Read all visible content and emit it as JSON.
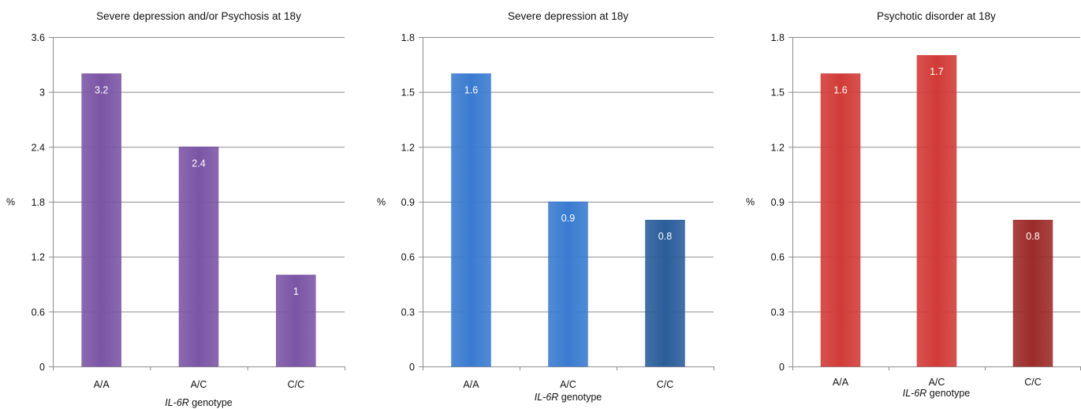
{
  "chart_data": [
    {
      "type": "bar",
      "title": "Severe depression and/or Psychosis at 18y",
      "ylabel": "%",
      "xlabel_italic": "IL-6R",
      "xlabel_rest": " genotype",
      "categories": [
        "A/A",
        "A/C",
        "C/C"
      ],
      "values": [
        3.2,
        2.4,
        1
      ],
      "data_labels": [
        "3.2",
        "2.4",
        "1"
      ],
      "ylim": [
        0,
        3.6
      ],
      "yticks": [
        0,
        0.6,
        1.2,
        1.8,
        2.4,
        3,
        3.6
      ],
      "ytick_labels": [
        "0",
        "0.6",
        "1.2",
        "1.8",
        "2.4",
        "3",
        "3.6"
      ],
      "grid": true,
      "bar_colors": [
        "#7b55a5",
        "#7b55a5",
        "#7b55a5"
      ]
    },
    {
      "type": "bar",
      "title": "Severe depression at 18y",
      "ylabel": "%",
      "xlabel_italic": "IL-6R",
      "xlabel_rest": " genotype",
      "categories": [
        "A/A",
        "A/C",
        "C/C"
      ],
      "values": [
        1.6,
        0.9,
        0.8
      ],
      "data_labels": [
        "1.6",
        "0.9",
        "0.8"
      ],
      "ylim": [
        0,
        1.8
      ],
      "yticks": [
        0,
        0.3,
        0.6,
        0.9,
        1.2,
        1.5,
        1.8
      ],
      "ytick_labels": [
        "0",
        "0.3",
        "0.6",
        "0.9",
        "1.2",
        "1.5",
        "1.8"
      ],
      "grid": true,
      "bar_colors": [
        "#3a7bd0",
        "#3a7bd0",
        "#2a5d9a"
      ]
    },
    {
      "type": "bar",
      "title": "Psychotic disorder at 18y",
      "ylabel": "%",
      "xlabel_italic": "IL-6R",
      "xlabel_rest": " genotype",
      "categories": [
        "A/A",
        "A/C",
        "C/C"
      ],
      "values": [
        1.6,
        1.7,
        0.8
      ],
      "data_labels": [
        "1.6",
        "1.7",
        "0.8"
      ],
      "ylim": [
        0,
        1.8
      ],
      "yticks": [
        0,
        0.3,
        0.6,
        0.9,
        1.2,
        1.5,
        1.8
      ],
      "ytick_labels": [
        "0",
        "0.3",
        "0.6",
        "0.9",
        "1.2",
        "1.5",
        "1.8"
      ],
      "grid": true,
      "bar_colors": [
        "#d13b37",
        "#d13b37",
        "#9c2b29"
      ]
    }
  ]
}
